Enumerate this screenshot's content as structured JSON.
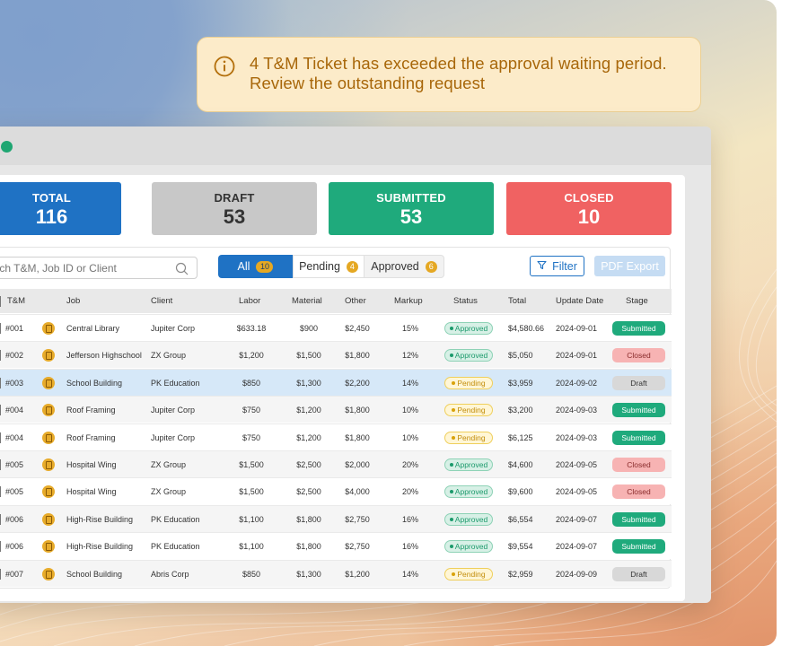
{
  "notification": {
    "line1": "4 T&M Ticket has exceeded the approval waiting period.",
    "line2": "Review the outstanding request",
    "icon": "info-circle-icon"
  },
  "stats": [
    {
      "label": "TOTAL",
      "value": "116",
      "color": "#1f72c4"
    },
    {
      "label": "DRAFT",
      "value": "53",
      "color": "#c8c8c8"
    },
    {
      "label": "SUBMITTED",
      "value": "53",
      "color": "#1faa7c"
    },
    {
      "label": "CLOSED",
      "value": "10",
      "color": "#f06262"
    }
  ],
  "search": {
    "placeholder": "Search T&M, Job ID or Client"
  },
  "tabs": [
    {
      "label": "All",
      "count": "10"
    },
    {
      "label": "Pending",
      "count": "4"
    },
    {
      "label": "Approved",
      "count": "6"
    }
  ],
  "toolbar": {
    "filter_label": "Filter",
    "pdf_label": "PDF Export"
  },
  "columns": [
    "T&M",
    "Job",
    "Client",
    "Labor",
    "Material",
    "Other",
    "Markup",
    "Status",
    "Total",
    "Update Date",
    "Stage"
  ],
  "rows": [
    {
      "id": "#001",
      "job": "Central Library",
      "client": "Jupiter Corp",
      "labor": "$633.18",
      "material": "$900",
      "other": "$2,450",
      "markup": "15%",
      "status": "Approved",
      "total": "$4,580.66",
      "date": "2024-09-01",
      "stage": "Submitted"
    },
    {
      "id": "#002",
      "job": "Jefferson Highschool",
      "client": "ZX Group",
      "labor": "$1,200",
      "material": "$1,500",
      "other": "$1,800",
      "markup": "12%",
      "status": "Approved",
      "total": "$5,050",
      "date": "2024-09-01",
      "stage": "Closed"
    },
    {
      "id": "#003",
      "job": "School Building",
      "client": "PK Education",
      "labor": "$850",
      "material": "$1,300",
      "other": "$2,200",
      "markup": "14%",
      "status": "Pending",
      "total": "$3,959",
      "date": "2024-09-02",
      "stage": "Draft"
    },
    {
      "id": "#004",
      "job": "Roof Framing",
      "client": "Jupiter Corp",
      "labor": "$750",
      "material": "$1,200",
      "other": "$1,800",
      "markup": "10%",
      "status": "Pending",
      "total": "$3,200",
      "date": "2024-09-03",
      "stage": "Submitted"
    },
    {
      "id": "#004",
      "job": "Roof Framing",
      "client": "Jupiter Corp",
      "labor": "$750",
      "material": "$1,200",
      "other": "$1,800",
      "markup": "10%",
      "status": "Pending",
      "total": "$6,125",
      "date": "2024-09-03",
      "stage": "Submitted"
    },
    {
      "id": "#005",
      "job": "Hospital Wing",
      "client": "ZX Group",
      "labor": "$1,500",
      "material": "$2,500",
      "other": "$2,000",
      "markup": "20%",
      "status": "Approved",
      "total": "$4,600",
      "date": "2024-09-05",
      "stage": "Closed"
    },
    {
      "id": "#005",
      "job": "Hospital Wing",
      "client": "ZX Group",
      "labor": "$1,500",
      "material": "$2,500",
      "other": "$4,000",
      "markup": "20%",
      "status": "Approved",
      "total": "$9,600",
      "date": "2024-09-05",
      "stage": "Closed"
    },
    {
      "id": "#006",
      "job": "High-Rise Building",
      "client": "PK Education",
      "labor": "$1,100",
      "material": "$1,800",
      "other": "$2,750",
      "markup": "16%",
      "status": "Approved",
      "total": "$6,554",
      "date": "2024-09-07",
      "stage": "Submitted"
    },
    {
      "id": "#006",
      "job": "High-Rise Building",
      "client": "PK Education",
      "labor": "$1,100",
      "material": "$1,800",
      "other": "$2,750",
      "markup": "16%",
      "status": "Approved",
      "total": "$9,554",
      "date": "2024-09-07",
      "stage": "Submitted"
    },
    {
      "id": "#007",
      "job": "School Building",
      "client": "Abris Corp",
      "labor": "$850",
      "material": "$1,300",
      "other": "$1,200",
      "markup": "14%",
      "status": "Pending",
      "total": "$2,959",
      "date": "2024-09-09",
      "stage": "Draft"
    }
  ]
}
